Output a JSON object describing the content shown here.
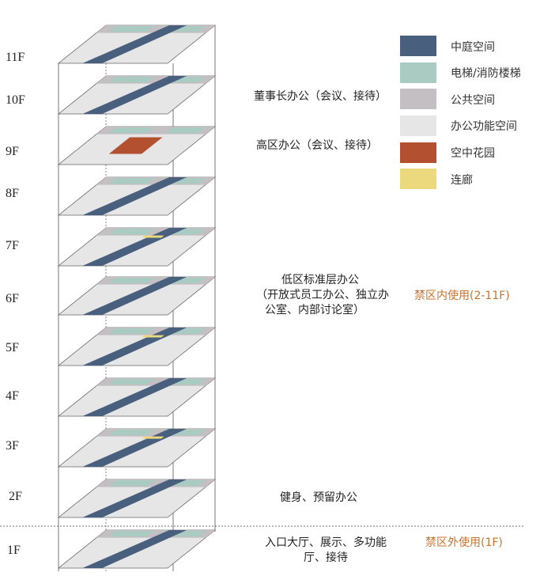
{
  "colors": {
    "courtyard": "#485f7d",
    "elevator": "#a9cbc2",
    "public": "#c4bfc2",
    "office": "#e6e6e6",
    "garden": "#b35030",
    "corridor": "#ecd97e",
    "zone_text": "#c8732f"
  },
  "legend": [
    {
      "label": "中庭空间",
      "color": "#485f7d"
    },
    {
      "label": "电梯/消防楼梯",
      "color": "#a9cbc2"
    },
    {
      "label": "公共空间",
      "color": "#c4bfc2"
    },
    {
      "label": "办公功能空间",
      "color": "#e6e6e6"
    },
    {
      "label": "空中花园",
      "color": "#b35030"
    },
    {
      "label": "连廊",
      "color": "#ecd97e"
    }
  ],
  "floors": [
    {
      "label": "11F",
      "features": [
        "courtyard"
      ]
    },
    {
      "label": "10F",
      "features": [
        "courtyard"
      ]
    },
    {
      "label": "9F",
      "features": [
        "garden"
      ]
    },
    {
      "label": "8F",
      "features": [
        "courtyard"
      ]
    },
    {
      "label": "7F",
      "features": [
        "courtyard",
        "corridor"
      ]
    },
    {
      "label": "6F",
      "features": [
        "courtyard"
      ]
    },
    {
      "label": "5F",
      "features": [
        "courtyard",
        "corridor"
      ]
    },
    {
      "label": "4F",
      "features": [
        "courtyard"
      ]
    },
    {
      "label": "3F",
      "features": [
        "courtyard",
        "corridor"
      ]
    },
    {
      "label": "2F",
      "features": [
        "courtyard"
      ]
    },
    {
      "label": "1F",
      "features": [
        "courtyard"
      ]
    }
  ],
  "annotations": [
    {
      "lines": [
        "董事长办公（会议、接待）"
      ]
    },
    {
      "lines": [
        "高区办公（会议、接待）"
      ]
    },
    {
      "lines": [
        "低区标准层办公",
        "（开放式员工办公、独立办",
        "公室、内部讨论室）"
      ]
    },
    {
      "lines": [
        "健身、预留办公"
      ]
    },
    {
      "lines": [
        "入口大厅、展示、多功能",
        "厅、接待"
      ]
    }
  ],
  "zones": [
    {
      "label": "禁区内使用(2-11F)"
    },
    {
      "label": "禁区外使用(1F)"
    }
  ]
}
